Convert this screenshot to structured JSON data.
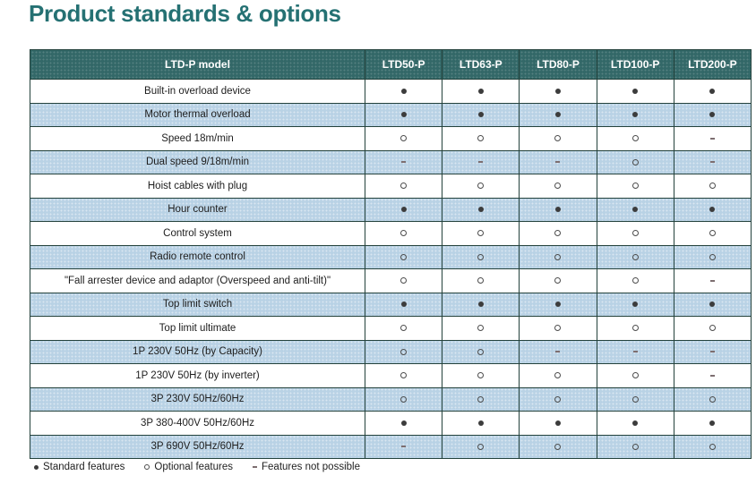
{
  "page_title": "Product standards & options",
  "table": {
    "header": {
      "model_col": "LTD-P model",
      "columns": [
        "LTD50-P",
        "LTD63-P",
        "LTD80-P",
        "LTD100-P",
        "LTD200-P"
      ]
    },
    "rows": [
      {
        "label": "Built-in overload device",
        "values": [
          "●",
          "●",
          "●",
          "●",
          "●"
        ]
      },
      {
        "label": "Motor thermal overload",
        "values": [
          "●",
          "●",
          "●",
          "●",
          "●"
        ]
      },
      {
        "label": "Speed 18m/min",
        "values": [
          "○",
          "○",
          "○",
          "○",
          "-"
        ]
      },
      {
        "label": "Dual speed 9/18m/min",
        "values": [
          "-",
          "-",
          "-",
          "○",
          "-"
        ]
      },
      {
        "label": "Hoist cables with plug",
        "values": [
          "○",
          "○",
          "○",
          "○",
          "○"
        ]
      },
      {
        "label": "Hour counter",
        "values": [
          "●",
          "●",
          "●",
          "●",
          "●"
        ]
      },
      {
        "label": "Control system",
        "values": [
          "○",
          "○",
          "○",
          "○",
          "○"
        ]
      },
      {
        "label": "Radio remote control",
        "values": [
          "○",
          "○",
          "○",
          "○",
          "○"
        ]
      },
      {
        "label": "\"Fall arrester device and adaptor (Overspeed and anti-tilt)\"",
        "values": [
          "○",
          "○",
          "○",
          "○",
          "-"
        ]
      },
      {
        "label": "Top limit switch",
        "values": [
          "●",
          "●",
          "●",
          "●",
          "●"
        ]
      },
      {
        "label": "Top limit ultimate",
        "values": [
          "○",
          "○",
          "○",
          "○",
          "○"
        ]
      },
      {
        "label": "1P 230V 50Hz (by Capacity)",
        "values": [
          "○",
          "○",
          "-",
          "-",
          "-"
        ]
      },
      {
        "label": "1P 230V 50Hz (by inverter)",
        "values": [
          "○",
          "○",
          "○",
          "○",
          "-"
        ]
      },
      {
        "label": "3P 230V 50Hz/60Hz",
        "values": [
          "○",
          "○",
          "○",
          "○",
          "○"
        ]
      },
      {
        "label": "3P 380-400V 50Hz/60Hz",
        "values": [
          "●",
          "●",
          "●",
          "●",
          "●"
        ]
      },
      {
        "label": "3P 690V 50Hz/60Hz",
        "values": [
          "-",
          "○",
          "○",
          "○",
          "○"
        ]
      }
    ]
  },
  "legend": {
    "standard_symbol": "●",
    "standard_label": "Standard features",
    "optional_symbol": "○",
    "optional_label": "Optional features",
    "not_possible_symbol": "-",
    "not_possible_label": "Features not possible"
  },
  "colors": {
    "title": "#257173",
    "header_bg": "#336868",
    "header_text": "#ffffff",
    "row_alt_bg": "#b9d2e5",
    "border": "#24423c",
    "marker": "#3c3c3c"
  }
}
